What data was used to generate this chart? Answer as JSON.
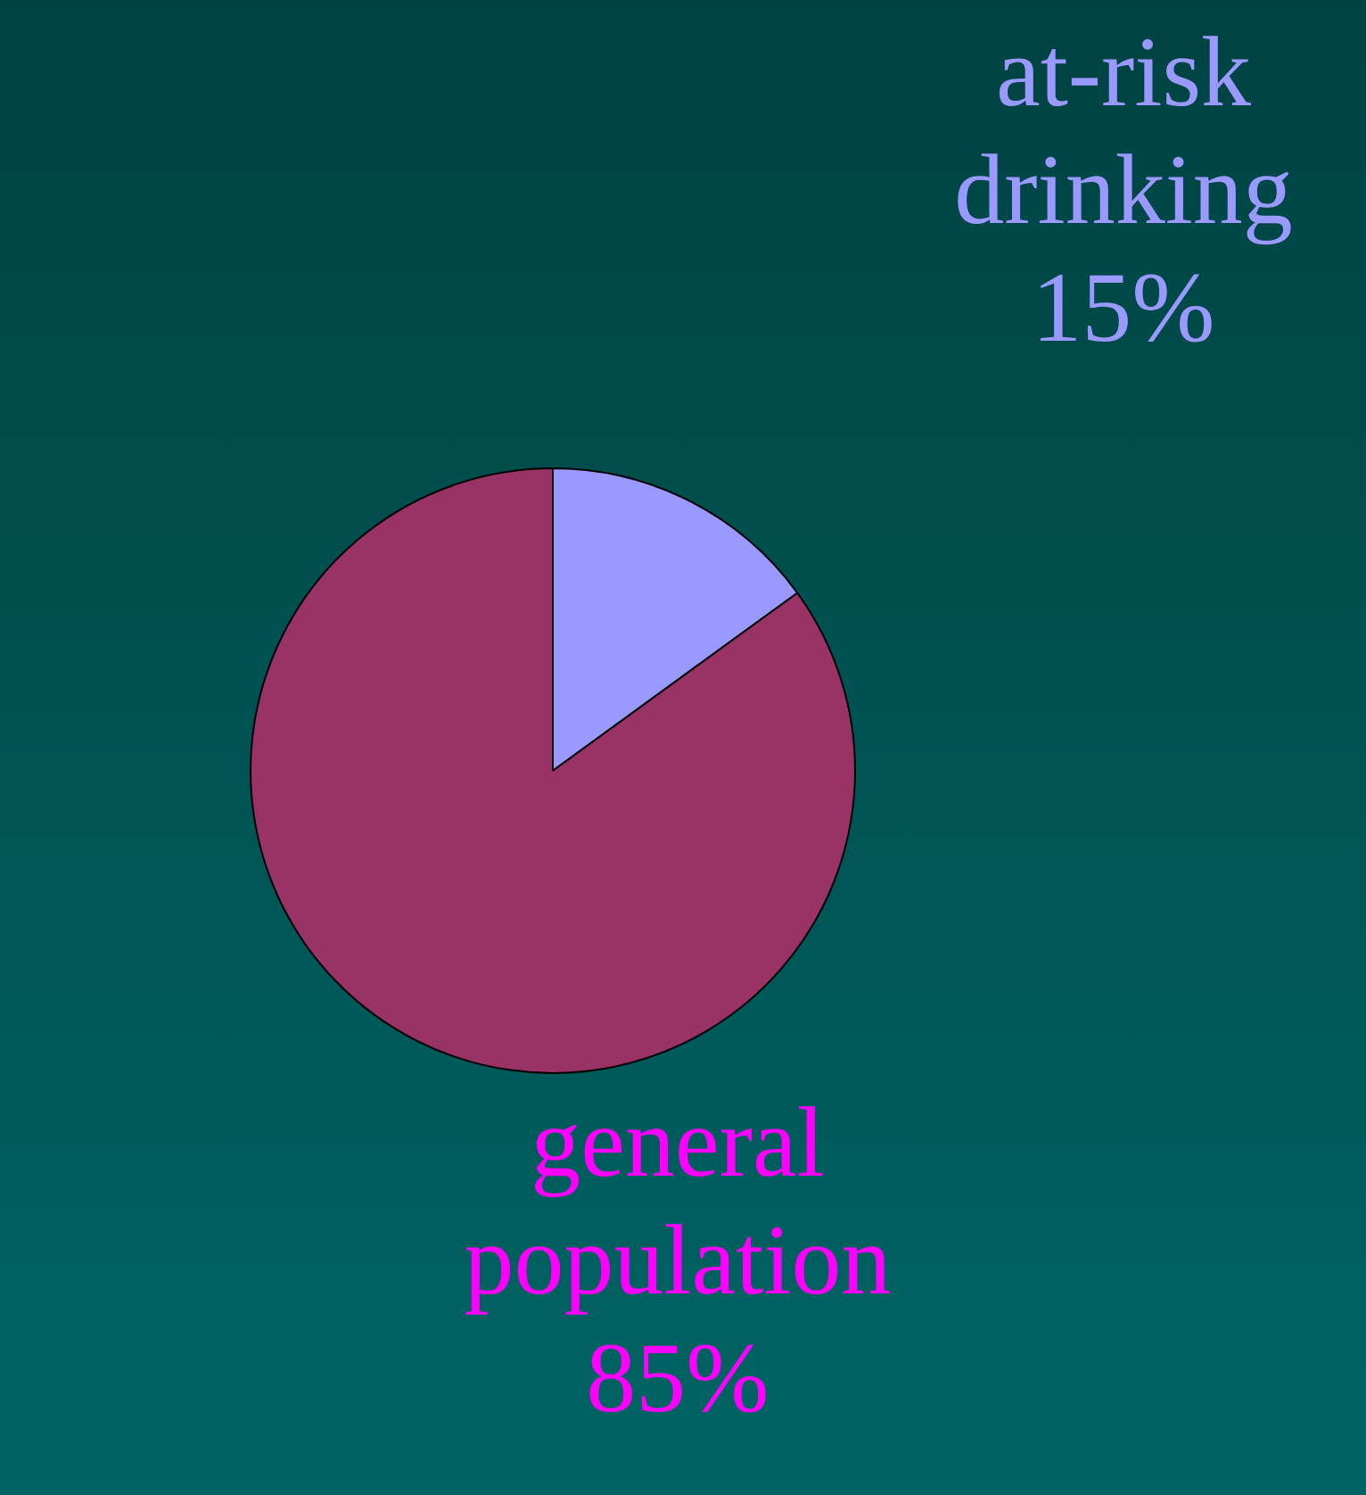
{
  "chart_data": {
    "type": "pie",
    "categories": [
      "at-risk drinking",
      "general population"
    ],
    "values": [
      15,
      85
    ],
    "value_labels": [
      "15%",
      "85%"
    ],
    "colors": [
      "#9999ff",
      "#993366"
    ]
  }
}
